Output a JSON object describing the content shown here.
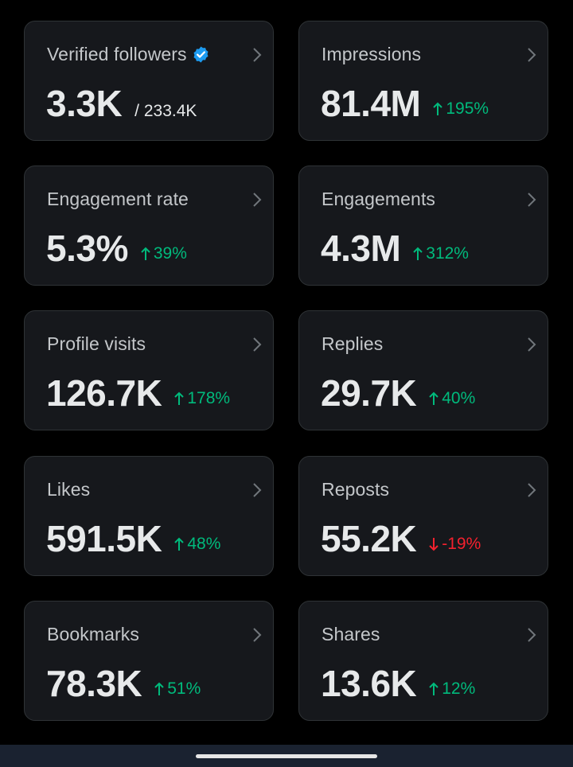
{
  "cards": {
    "verified_followers": {
      "label": "Verified followers",
      "value": "3.3K",
      "total": "/ 233.4K"
    },
    "impressions": {
      "label": "Impressions",
      "value": "81.4M",
      "delta": "195%",
      "trend": "up"
    },
    "engagement_rate": {
      "label": "Engagement rate",
      "value": "5.3%",
      "delta": "39%",
      "trend": "up"
    },
    "engagements": {
      "label": "Engagements",
      "value": "4.3M",
      "delta": "312%",
      "trend": "up"
    },
    "profile_visits": {
      "label": "Profile visits",
      "value": "126.7K",
      "delta": "178%",
      "trend": "up"
    },
    "replies": {
      "label": "Replies",
      "value": "29.7K",
      "delta": "40%",
      "trend": "up"
    },
    "likes": {
      "label": "Likes",
      "value": "591.5K",
      "delta": "48%",
      "trend": "up"
    },
    "reposts": {
      "label": "Reposts",
      "value": "55.2K",
      "delta": "-19%",
      "trend": "down"
    },
    "bookmarks": {
      "label": "Bookmarks",
      "value": "78.3K",
      "delta": "51%",
      "trend": "up"
    },
    "shares": {
      "label": "Shares",
      "value": "13.6K",
      "delta": "12%",
      "trend": "up"
    }
  },
  "colors": {
    "background": "#000000",
    "card_background": "#16181c",
    "card_border": "#2f3336",
    "positive": "#00ba7c",
    "negative": "#f4212e",
    "verified_badge": "#1d9bf0"
  },
  "icons": {
    "chevron": "chevron-right-icon",
    "verified": "verified-badge-icon",
    "up": "arrow-up-icon",
    "down": "arrow-down-icon"
  }
}
